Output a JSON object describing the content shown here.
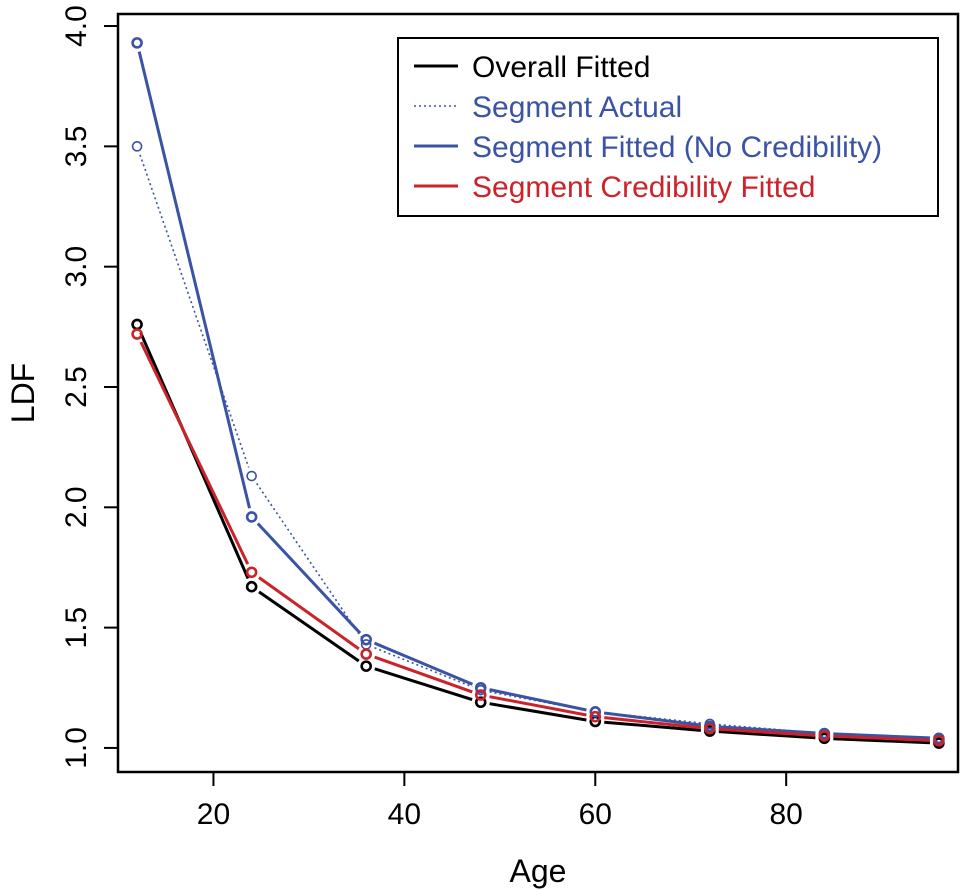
{
  "chart_data": {
    "type": "line",
    "xlabel": "Age",
    "ylabel": "LDF",
    "xlim": [
      10,
      98
    ],
    "ylim": [
      0.9,
      4.05
    ],
    "x_ticks": [
      20,
      40,
      60,
      80
    ],
    "x_tick_labels": [
      "20",
      "40",
      "60",
      "80"
    ],
    "y_ticks": [
      1.0,
      1.5,
      2.0,
      2.5,
      3.0,
      3.5,
      4.0
    ],
    "y_tick_labels": [
      "1.0",
      "1.5",
      "2.0",
      "2.5",
      "3.0",
      "3.5",
      "4.0"
    ],
    "x": [
      12,
      24,
      36,
      48,
      60,
      72,
      84,
      96
    ],
    "legend_position": "top-right",
    "series": [
      {
        "name": "Overall Fitted",
        "color": "#000000",
        "line_style": "solid",
        "values": [
          2.76,
          1.67,
          1.34,
          1.19,
          1.11,
          1.07,
          1.04,
          1.02
        ]
      },
      {
        "name": "Segment Actual",
        "color": "#3a53a4",
        "line_style": "dotted",
        "values": [
          3.5,
          2.13,
          1.43,
          1.24,
          1.15,
          1.1,
          1.06,
          1.04
        ]
      },
      {
        "name": "Segment Fitted (No Credibility)",
        "color": "#3a53a4",
        "line_style": "solid",
        "values": [
          3.93,
          1.96,
          1.45,
          1.25,
          1.15,
          1.09,
          1.06,
          1.04
        ]
      },
      {
        "name": "Segment Credibility Fitted",
        "color": "#cc2229",
        "line_style": "solid",
        "values": [
          2.72,
          1.73,
          1.39,
          1.22,
          1.13,
          1.08,
          1.05,
          1.03
        ]
      }
    ]
  }
}
